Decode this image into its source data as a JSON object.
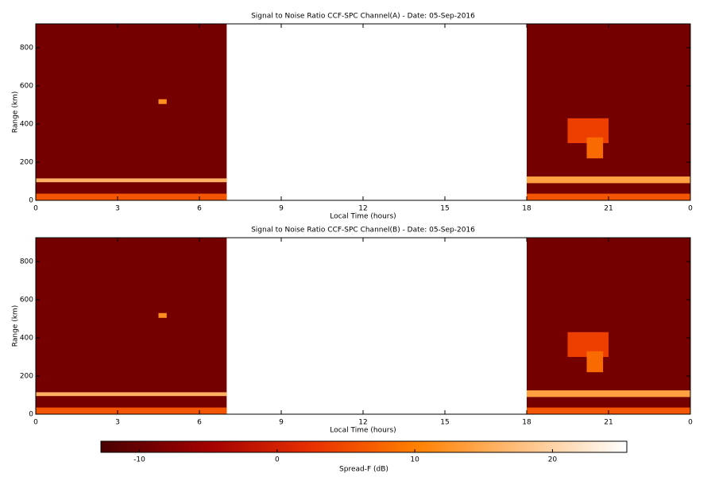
{
  "chart_data": [
    {
      "type": "heatmap",
      "title": "Signal to Noise Ratio CCF-SPC Channel(A) - Date: 05-Sep-2016",
      "xlabel": "Local Time (hours)",
      "ylabel": "Range (km)",
      "xlim": [
        0,
        24
      ],
      "xticks": [
        0,
        3,
        6,
        9,
        12,
        15,
        18,
        21,
        {
          "value": 24,
          "label": "0"
        }
      ],
      "ylim": [
        0,
        925
      ],
      "yticks": [
        0,
        200,
        400,
        600,
        800
      ],
      "regions": [
        {
          "x": [
            0,
            7
          ],
          "y": [
            0,
            925
          ],
          "value": -9
        },
        {
          "x": [
            18,
            24
          ],
          "y": [
            0,
            925
          ],
          "value": -9
        },
        {
          "x": [
            0,
            7
          ],
          "y": [
            0,
            35
          ],
          "value": 6
        },
        {
          "x": [
            18,
            24
          ],
          "y": [
            0,
            35
          ],
          "value": 6
        },
        {
          "x": [
            0,
            7
          ],
          "y": [
            95,
            115
          ],
          "value": 16
        },
        {
          "x": [
            18,
            24
          ],
          "y": [
            90,
            125
          ],
          "value": 14
        },
        {
          "x": [
            4.5,
            4.8
          ],
          "y": [
            505,
            530
          ],
          "value": 12
        },
        {
          "x": [
            19.5,
            21
          ],
          "y": [
            300,
            430
          ],
          "value": 4
        },
        {
          "x": [
            20.2,
            20.8
          ],
          "y": [
            220,
            330
          ],
          "value": 8
        }
      ]
    },
    {
      "type": "heatmap",
      "title": "Signal to Noise Ratio CCF-SPC Channel(B) - Date: 05-Sep-2016",
      "xlabel": "Local Time (hours)",
      "ylabel": "Range (km)",
      "xlim": [
        0,
        24
      ],
      "xticks": [
        0,
        3,
        6,
        9,
        12,
        15,
        18,
        21,
        {
          "value": 24,
          "label": "0"
        }
      ],
      "ylim": [
        0,
        925
      ],
      "yticks": [
        0,
        200,
        400,
        600,
        800
      ],
      "regions": [
        {
          "x": [
            0,
            7
          ],
          "y": [
            0,
            925
          ],
          "value": -9
        },
        {
          "x": [
            18,
            24
          ],
          "y": [
            0,
            925
          ],
          "value": -9
        },
        {
          "x": [
            0,
            7
          ],
          "y": [
            0,
            35
          ],
          "value": 6
        },
        {
          "x": [
            18,
            24
          ],
          "y": [
            0,
            35
          ],
          "value": 6
        },
        {
          "x": [
            0,
            7
          ],
          "y": [
            95,
            115
          ],
          "value": 16
        },
        {
          "x": [
            18,
            24
          ],
          "y": [
            90,
            125
          ],
          "value": 14
        },
        {
          "x": [
            4.5,
            4.8
          ],
          "y": [
            505,
            530
          ],
          "value": 12
        },
        {
          "x": [
            19.5,
            21
          ],
          "y": [
            300,
            430
          ],
          "value": 4
        },
        {
          "x": [
            20.2,
            20.8
          ],
          "y": [
            220,
            330
          ],
          "value": 8
        }
      ]
    },
    {
      "type": "colorbar",
      "label": "Spread-F (dB)",
      "lim": [
        -12.8,
        25.4
      ],
      "ticks": [
        -10,
        0,
        10,
        20
      ],
      "colormap": [
        "#4a0000",
        "#a00000",
        "#e83000",
        "#ff8000",
        "#ffc080",
        "#ffffff"
      ]
    }
  ]
}
